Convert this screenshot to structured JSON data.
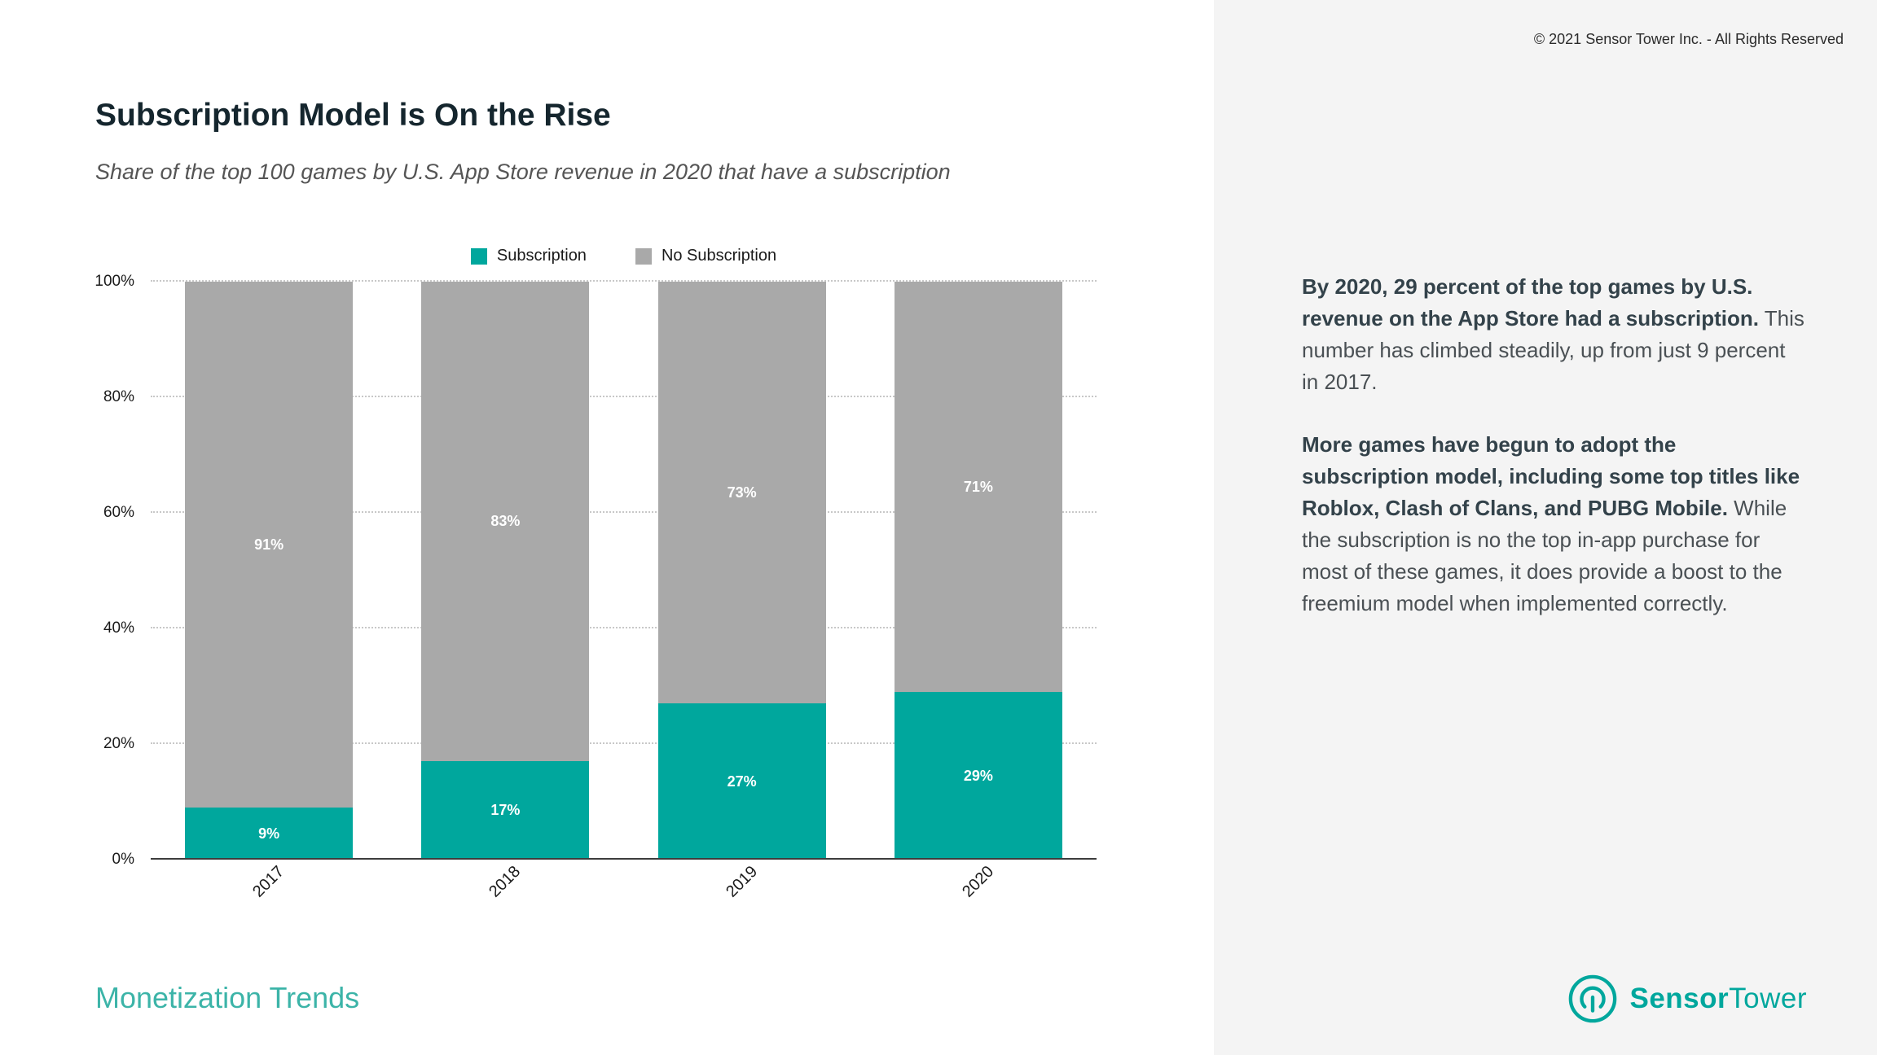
{
  "meta": {
    "copyright": "© 2021 Sensor Tower Inc. - All Rights Reserved"
  },
  "header": {
    "title": "Subscription Model is On the Rise",
    "subtitle": "Share of the top 100 games by U.S. App Store revenue in 2020 that have a subscription"
  },
  "chart_data": {
    "type": "bar",
    "stacked": true,
    "title": "Subscription Model is On the Rise",
    "subtitle": "Share of the top 100 games by U.S. App Store revenue in 2020 that have a subscription",
    "categories": [
      "2017",
      "2018",
      "2019",
      "2020"
    ],
    "series": [
      {
        "name": "Subscription",
        "color": "#00a79d",
        "values": [
          9,
          17,
          27,
          29
        ]
      },
      {
        "name": "No Subscription",
        "color": "#a9a9a9",
        "values": [
          91,
          83,
          73,
          71
        ]
      }
    ],
    "ylim": [
      0,
      100
    ],
    "y_ticks": [
      "0%",
      "20%",
      "40%",
      "60%",
      "80%",
      "100%"
    ],
    "grid": "dotted horizontal",
    "legend_position": "top center",
    "value_label_format": "percent",
    "value_labels_inside_segments": true
  },
  "sidebar": {
    "p1_bold": "By 2020, 29 percent of the top games by U.S. revenue on the App Store had a subscription.",
    "p1_rest": "This number has climbed steadily, up from just 9 percent in 2017.",
    "p2_bold": "More games have begun to adopt the subscription model, including some top titles like Roblox, Clash of Clans, and PUBG Mobile.",
    "p2_rest": "While the subscription is no the top in-app purchase for most of these games, it does provide a boost to the freemium model when implemented correctly."
  },
  "footer": {
    "label": "Monetization Trends",
    "logo_bold": "Sensor",
    "logo_regular": "Tower"
  },
  "colors": {
    "accent": "#00a79d",
    "accent_light": "#3cb4a8",
    "gray_bar": "#a9a9a9",
    "panel_bg": "#f4f4f4",
    "title_text": "#15262e"
  }
}
